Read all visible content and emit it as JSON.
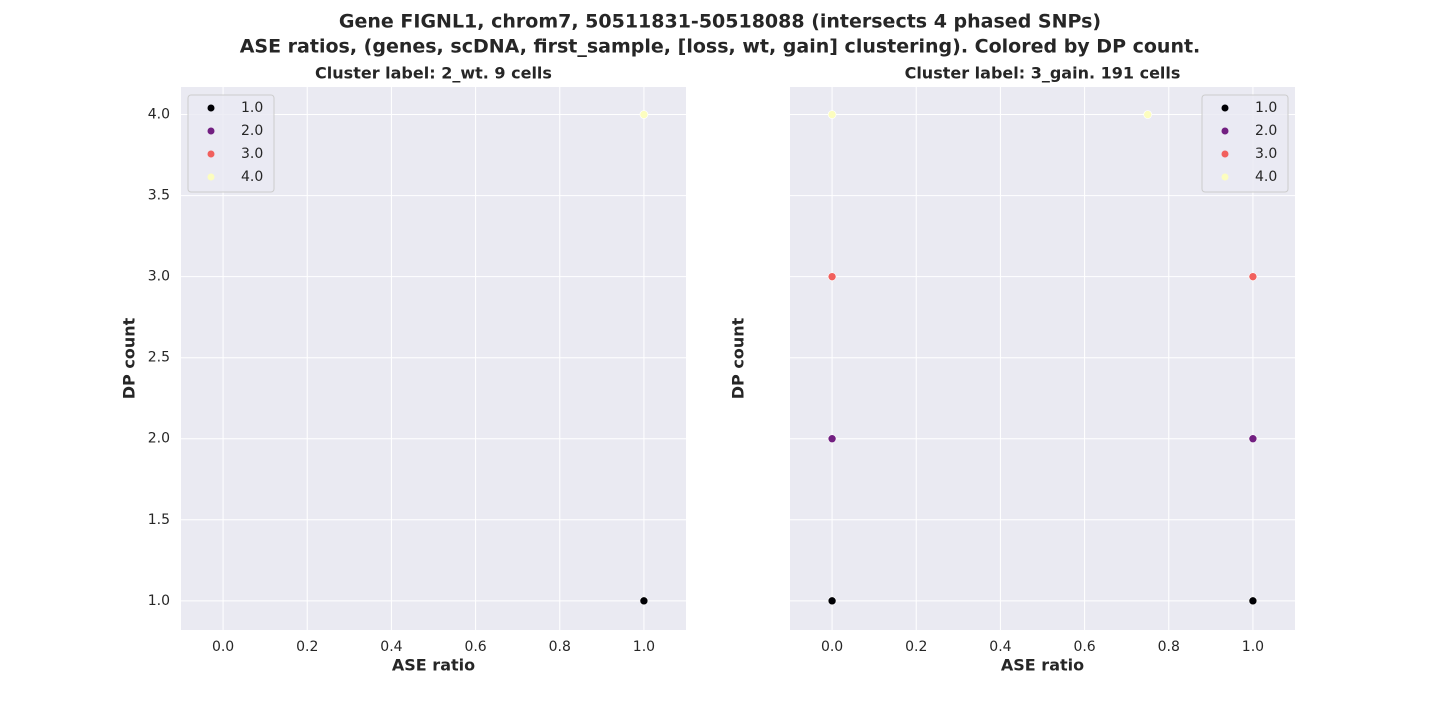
{
  "suptitle": [
    "Gene FIGNL1, chrom7, 50511831-50518088 (intersects 4 phased SNPs)",
    "ASE ratios, (genes, scDNA, first_sample, [loss, wt, gain] clustering). Colored by DP count."
  ],
  "chart_data": [
    {
      "type": "scatter",
      "title": "Cluster label: 2_wt. 9 cells",
      "xlabel": "ASE ratio",
      "ylabel": "DP count",
      "xlim": [
        -0.1,
        1.1
      ],
      "ylim": [
        0.82,
        4.17
      ],
      "xticks": [
        {
          "value": 0,
          "label": "0.0"
        },
        {
          "value": 0.2,
          "label": "0.2"
        },
        {
          "value": 0.4,
          "label": "0.4"
        },
        {
          "value": 0.6,
          "label": "0.6"
        },
        {
          "value": 0.8,
          "label": "0.8"
        },
        {
          "value": 1,
          "label": "1.0"
        }
      ],
      "yticks": [
        {
          "value": 1,
          "label": "1.0"
        },
        {
          "value": 1.5,
          "label": "1.5"
        },
        {
          "value": 2,
          "label": "2.0"
        },
        {
          "value": 2.5,
          "label": "2.5"
        },
        {
          "value": 3,
          "label": "3.0"
        },
        {
          "value": 3.5,
          "label": "3.5"
        },
        {
          "value": 4,
          "label": "4.0"
        }
      ],
      "ytick_labels": true,
      "grid": true,
      "legend": "upper left",
      "series": [
        {
          "name": "1.0",
          "color": "#000004",
          "x": [
            1
          ],
          "values": [
            1
          ]
        },
        {
          "name": "2.0",
          "color": "#721f81",
          "x": [],
          "values": []
        },
        {
          "name": "3.0",
          "color": "#f1605d",
          "x": [],
          "values": []
        },
        {
          "name": "4.0",
          "color": "#fcfdbf",
          "x": [
            1
          ],
          "values": [
            4
          ]
        }
      ]
    },
    {
      "type": "scatter",
      "title": "Cluster label: 3_gain. 191 cells",
      "xlabel": "ASE ratio",
      "ylabel": "DP count",
      "xlim": [
        -0.1,
        1.1
      ],
      "ylim": [
        0.82,
        4.17
      ],
      "xticks": [
        {
          "value": 0,
          "label": "0.0"
        },
        {
          "value": 0.2,
          "label": "0.2"
        },
        {
          "value": 0.4,
          "label": "0.4"
        },
        {
          "value": 0.6,
          "label": "0.6"
        },
        {
          "value": 0.8,
          "label": "0.8"
        },
        {
          "value": 1,
          "label": "1.0"
        }
      ],
      "yticks": [
        1,
        1.5,
        2,
        2.5,
        3,
        3.5,
        4
      ],
      "ytick_labels": false,
      "grid": true,
      "legend": "upper right",
      "series": [
        {
          "name": "1.0",
          "color": "#000004",
          "x": [
            0,
            1
          ],
          "values": [
            1,
            1
          ]
        },
        {
          "name": "2.0",
          "color": "#721f81",
          "x": [
            0,
            1
          ],
          "values": [
            2,
            2
          ]
        },
        {
          "name": "3.0",
          "color": "#f1605d",
          "x": [
            0,
            1
          ],
          "values": [
            3,
            3
          ]
        },
        {
          "name": "4.0",
          "color": "#fcfdbf",
          "x": [
            0,
            0.75
          ],
          "values": [
            4,
            4
          ]
        }
      ]
    }
  ]
}
